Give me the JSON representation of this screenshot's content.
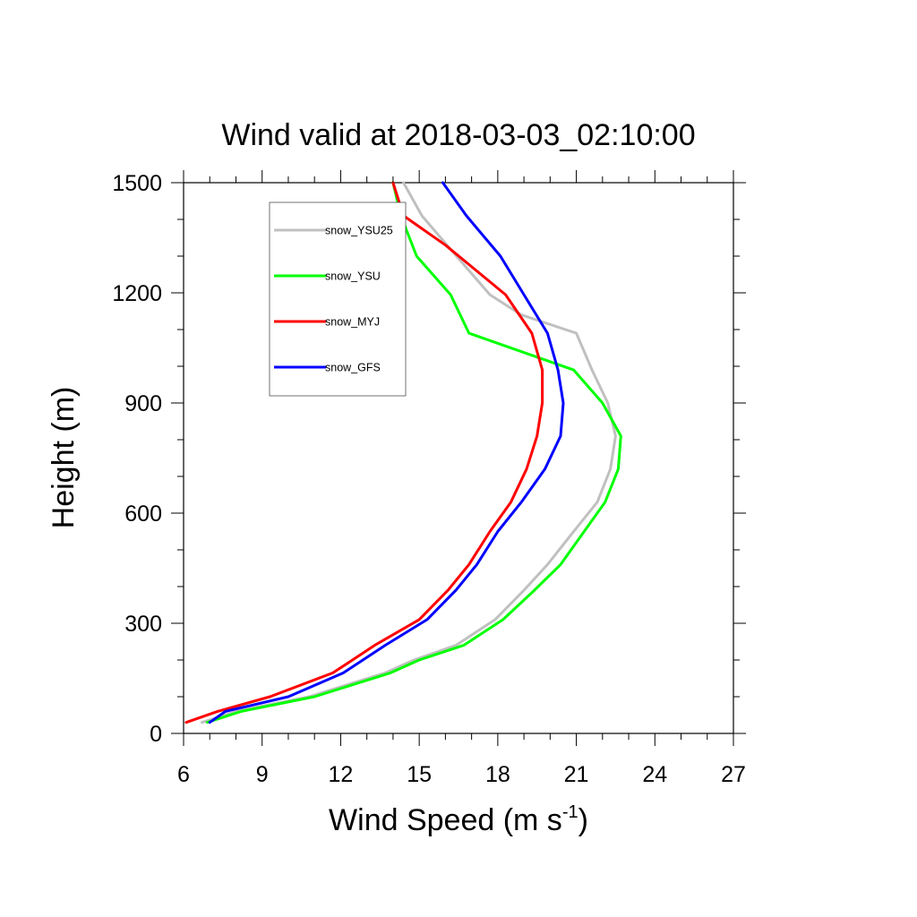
{
  "chart_data": {
    "type": "line",
    "title": "Wind valid at 2018-03-03_02:10:00",
    "xlabel": "Wind Speed (m s",
    "xlabel_sup": "-1",
    "xlabel_end": ")",
    "ylabel": "Height (m)",
    "xlim": [
      6,
      27
    ],
    "ylim": [
      0,
      1500
    ],
    "xticks": [
      "6",
      "9",
      "12",
      "15",
      "18",
      "21",
      "24",
      "27"
    ],
    "yticks": [
      "0",
      "300",
      "600",
      "900",
      "1200",
      "1500"
    ],
    "grid": false,
    "legend_position": "top-left",
    "series": [
      {
        "name": "snow_YSU25",
        "color": "#c0c0c0",
        "points": [
          [
            6.7,
            30
          ],
          [
            8.0,
            60
          ],
          [
            10.8,
            100
          ],
          [
            13.7,
            165
          ],
          [
            14.8,
            200
          ],
          [
            16.4,
            240
          ],
          [
            17.9,
            310
          ],
          [
            19.0,
            390
          ],
          [
            19.9,
            460
          ],
          [
            20.9,
            550
          ],
          [
            21.8,
            630
          ],
          [
            22.3,
            720
          ],
          [
            22.5,
            810
          ],
          [
            22.2,
            900
          ],
          [
            21.6,
            990
          ],
          [
            21.0,
            1090
          ],
          [
            18.9,
            1140
          ],
          [
            17.7,
            1195
          ],
          [
            16.3,
            1310
          ],
          [
            15.1,
            1410
          ],
          [
            14.4,
            1500
          ]
        ]
      },
      {
        "name": "snow_YSU",
        "color": "#00ff00",
        "points": [
          [
            6.9,
            30
          ],
          [
            8.2,
            60
          ],
          [
            11.0,
            100
          ],
          [
            13.9,
            165
          ],
          [
            15.0,
            200
          ],
          [
            16.7,
            240
          ],
          [
            18.2,
            310
          ],
          [
            19.4,
            390
          ],
          [
            20.4,
            460
          ],
          [
            21.3,
            550
          ],
          [
            22.1,
            630
          ],
          [
            22.6,
            720
          ],
          [
            22.7,
            810
          ],
          [
            22.0,
            900
          ],
          [
            20.9,
            990
          ],
          [
            16.9,
            1090
          ],
          [
            16.2,
            1195
          ],
          [
            14.9,
            1300
          ],
          [
            14.3,
            1410
          ],
          [
            14.0,
            1500
          ]
        ]
      },
      {
        "name": "snow_MYJ",
        "color": "#ff0000",
        "points": [
          [
            6.1,
            30
          ],
          [
            7.3,
            60
          ],
          [
            9.3,
            100
          ],
          [
            11.7,
            165
          ],
          [
            13.3,
            240
          ],
          [
            15.0,
            310
          ],
          [
            16.1,
            390
          ],
          [
            16.9,
            460
          ],
          [
            17.7,
            550
          ],
          [
            18.5,
            630
          ],
          [
            19.1,
            720
          ],
          [
            19.5,
            810
          ],
          [
            19.7,
            900
          ],
          [
            19.7,
            990
          ],
          [
            19.3,
            1090
          ],
          [
            18.3,
            1195
          ],
          [
            16.0,
            1330
          ],
          [
            14.4,
            1410
          ],
          [
            14.0,
            1500
          ]
        ]
      },
      {
        "name": "snow_GFS",
        "color": "#0000ff",
        "points": [
          [
            7.0,
            30
          ],
          [
            7.6,
            60
          ],
          [
            10.0,
            100
          ],
          [
            12.1,
            165
          ],
          [
            13.7,
            240
          ],
          [
            15.3,
            310
          ],
          [
            16.4,
            390
          ],
          [
            17.2,
            460
          ],
          [
            18.0,
            550
          ],
          [
            18.9,
            630
          ],
          [
            19.8,
            720
          ],
          [
            20.4,
            810
          ],
          [
            20.5,
            900
          ],
          [
            20.3,
            990
          ],
          [
            19.9,
            1090
          ],
          [
            19.0,
            1195
          ],
          [
            18.1,
            1300
          ],
          [
            16.8,
            1410
          ],
          [
            15.9,
            1500
          ]
        ]
      }
    ]
  }
}
